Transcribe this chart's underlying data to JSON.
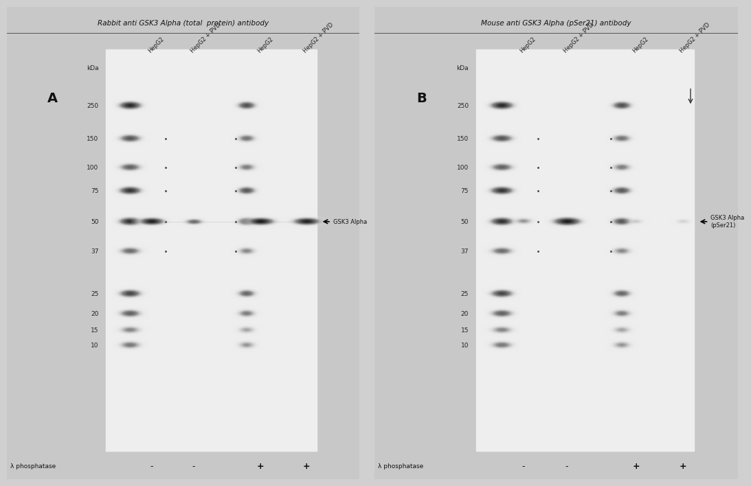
{
  "fig_bg": "#d0d0d0",
  "blot_bg": "#f0f0f0",
  "outer_bg": "#c8c8c8",
  "title_A": "Rabbit anti GSK3 Alpha (total  protein) antibody",
  "title_B": "Mouse anti GSK3 Alpha (pSer21) antibody",
  "label_A": "A",
  "label_B": "B",
  "lane_labels": [
    "HepG2",
    "HepG2 + PVD",
    "HepG2",
    "HepG2 + PVD"
  ],
  "mw_labels": [
    "kDa",
    "250",
    "150",
    "100",
    "75",
    "50",
    "37",
    "25",
    "20",
    "15",
    "10"
  ],
  "phosphatase_label": "λ phosphatase",
  "phosphatase_signs_A": [
    "-",
    "-",
    "+",
    "+"
  ],
  "phosphatase_signs_B": [
    "-",
    "-",
    "+",
    "+"
  ],
  "arrow_label_A": "GSK3 Alpha",
  "arrow_label_B": "GSK3 Alpha\n(pSer21)",
  "ladder_band_intensities": [
    0.85,
    0.65,
    0.6,
    0.8,
    0.82,
    0.55,
    0.72,
    0.6,
    0.45,
    0.5
  ]
}
